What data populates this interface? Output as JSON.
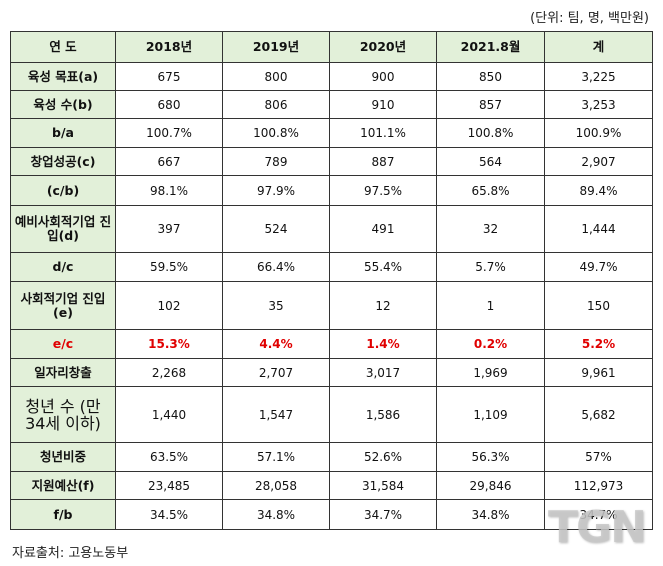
{
  "unit_note": "(단위: 팀, 명, 백만원)",
  "source": "자료출처: 고용노동부",
  "watermark": "TGN",
  "colors": {
    "header_bg": "#e2f0d9",
    "highlight_red": "#e00000"
  },
  "table": {
    "header": [
      "연 도",
      "2018년",
      "2019년",
      "2020년",
      "2021.8월",
      "계"
    ],
    "rows": [
      {
        "label": "육성 목표(a)",
        "values": [
          "675",
          "800",
          "900",
          "850",
          "3,225"
        ]
      },
      {
        "label": "육성 수(b)",
        "values": [
          "680",
          "806",
          "910",
          "857",
          "3,253"
        ]
      },
      {
        "label": "b/a",
        "values": [
          "100.7%",
          "100.8%",
          "101.1%",
          "100.8%",
          "100.9%"
        ]
      },
      {
        "label": "창업성공(c)",
        "values": [
          "667",
          "789",
          "887",
          "564",
          "2,907"
        ]
      },
      {
        "label": "(c/b)",
        "values": [
          "98.1%",
          "97.9%",
          "97.5%",
          "65.8%",
          "89.4%"
        ]
      },
      {
        "label": "예비사회적기업 진입(d)",
        "values": [
          "397",
          "524",
          "491",
          "32",
          "1,444"
        ]
      },
      {
        "label": "d/c",
        "values": [
          "59.5%",
          "66.4%",
          "55.4%",
          "5.7%",
          "49.7%"
        ]
      },
      {
        "label": "사회적기업 진입(e)",
        "values": [
          "102",
          "35",
          "12",
          "1",
          "150"
        ]
      },
      {
        "label": "e/c",
        "values": [
          "15.3%",
          "4.4%",
          "1.4%",
          "0.2%",
          "5.2%"
        ]
      },
      {
        "label": "일자리창출",
        "values": [
          "2,268",
          "2,707",
          "3,017",
          "1,969",
          "9,961"
        ]
      },
      {
        "label": "청년 수 (만 34세 이하)",
        "values": [
          "1,440",
          "1,547",
          "1,586",
          "1,109",
          "5,682"
        ]
      },
      {
        "label": "청년비중",
        "values": [
          "63.5%",
          "57.1%",
          "52.6%",
          "56.3%",
          "57%"
        ]
      },
      {
        "label": "지원예산(f)",
        "values": [
          "23,485",
          "28,058",
          "31,584",
          "29,846",
          "112,973"
        ]
      },
      {
        "label": "f/b",
        "values": [
          "34.5%",
          "34.8%",
          "34.7%",
          "34.8%",
          "34.7%"
        ]
      }
    ]
  }
}
